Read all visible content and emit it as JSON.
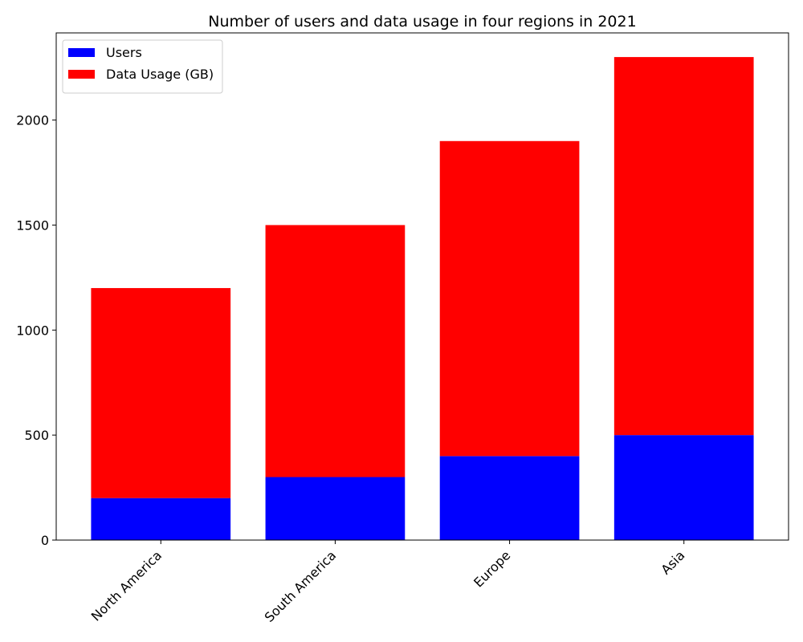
{
  "chart_data": {
    "type": "bar",
    "stacked": true,
    "title": "Number of users and data usage in four regions in 2021",
    "xlabel": "",
    "ylabel": "",
    "categories": [
      "North America",
      "South America",
      "Europe",
      "Asia"
    ],
    "series": [
      {
        "name": "Users",
        "values": [
          200,
          300,
          400,
          500
        ],
        "color": "#0000ff"
      },
      {
        "name": "Data Usage (GB)",
        "values": [
          1000,
          1200,
          1500,
          1800
        ],
        "color": "#ff0000"
      }
    ],
    "ylim": [
      0,
      2415
    ],
    "yticks": [
      0,
      500,
      1000,
      1500,
      2000
    ],
    "ytick_labels": [
      "0",
      "500",
      "1000",
      "1500",
      "2000"
    ],
    "xtick_rotation": 45,
    "legend": "top-left",
    "grid": false
  }
}
